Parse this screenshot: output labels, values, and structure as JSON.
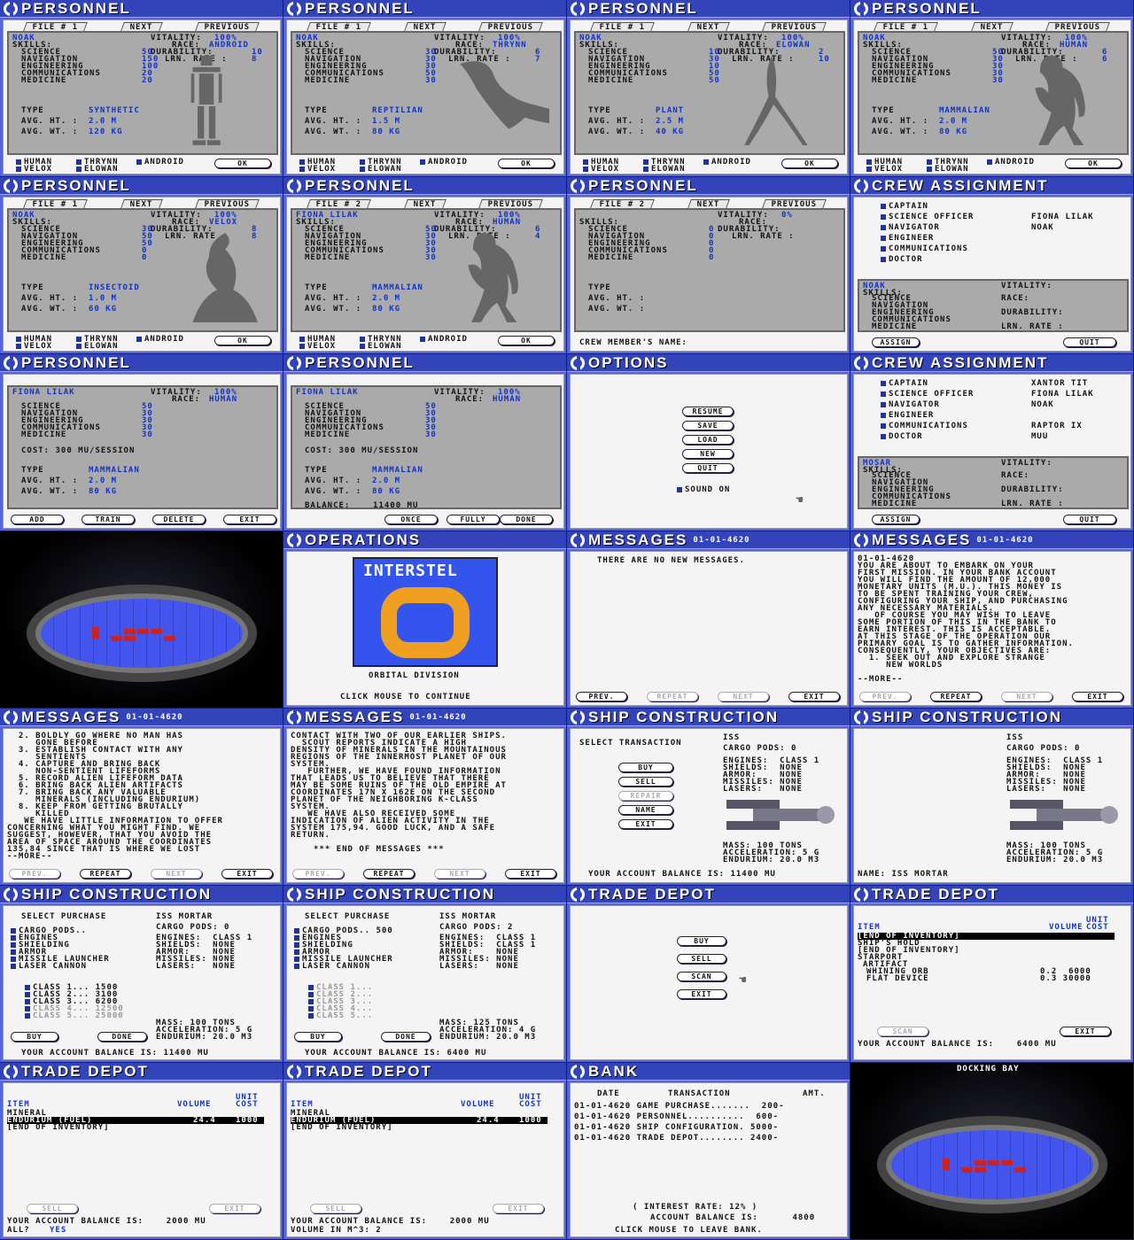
{
  "personnel_panels": [
    {
      "title": "PERSONNEL",
      "file": "1",
      "name": "NOAK",
      "race": "ANDROID",
      "durability": "10",
      "lrn": "8",
      "vitality": "100%",
      "skills": [
        "50",
        "150",
        "100",
        "20",
        "20"
      ],
      "type": "SYNTHETIC",
      "ht": "2.0 M",
      "wt": "120 KG"
    },
    {
      "title": "PERSONNEL",
      "file": "1",
      "name": "NOAK",
      "race": "THRYNN",
      "durability": "6",
      "lrn": "7",
      "vitality": "100%",
      "skills": [
        "30",
        "30",
        "30",
        "50",
        "30"
      ],
      "type": "REPTILIAN",
      "ht": "1.5 M",
      "wt": "80 KG"
    },
    {
      "title": "PERSONNEL",
      "file": "1",
      "name": "NOAK",
      "race": "ELOWAN",
      "durability": "2",
      "lrn": "10",
      "vitality": "100%",
      "skills": [
        "10",
        "30",
        "10",
        "50",
        "50"
      ],
      "type": "PLANT",
      "ht": "2.5 M",
      "wt": "40 KG"
    },
    {
      "title": "PERSONNEL",
      "file": "1",
      "name": "NOAK",
      "race": "HUMAN",
      "durability": "6",
      "lrn": "6",
      "vitality": "100%",
      "skills": [
        "50",
        "30",
        "30",
        "30",
        "30"
      ],
      "type": "MAMMALIAN",
      "ht": "2.0 M",
      "wt": "80 KG"
    },
    {
      "title": "PERSONNEL",
      "file": "1",
      "name": "NOAK",
      "race": "VELOX",
      "durability": "8",
      "lrn": "8",
      "vitality": "100%",
      "skills": [
        "30",
        "50",
        "50",
        "0",
        "0"
      ],
      "type": "INSECTOID",
      "ht": "1.0 M",
      "wt": "60 KG"
    },
    {
      "title": "PERSONNEL",
      "file": "2",
      "name": "FIONA LILAK",
      "race": "HUMAN",
      "durability": "6",
      "lrn": "4",
      "vitality": "100%",
      "skills": [
        "50",
        "30",
        "30",
        "30",
        "30"
      ],
      "type": "MAMMALIAN",
      "ht": "2.0 M",
      "wt": "80 KG"
    },
    {
      "title": "PERSONNEL",
      "file": "2",
      "name": "",
      "race": "",
      "durability": "",
      "lrn": "",
      "vitality": "0%",
      "skills": [
        "0",
        "0",
        "0",
        "0",
        "0"
      ],
      "type": "",
      "ht": "M",
      "wt": "KG"
    }
  ],
  "labels": {
    "file": "FILE #",
    "next": "NEXT",
    "previous": "PREVIOUS",
    "vitality": "VITALITY:",
    "skills": "SKILLS:",
    "race": "RACE:",
    "durability": "DURABILITY:",
    "lrn": "LRN. RATE :",
    "science": "SCIENCE",
    "navigation": "NAVIGATION",
    "engineering": "ENGINEERING",
    "communications": "COMMUNICATIONS",
    "medicine": "MEDICINE",
    "type": "TYPE",
    "ht": "AVG. HT. :",
    "wt": "AVG. WT. :",
    "ok": "OK",
    "races": [
      "HUMAN",
      "THRYNN",
      "ANDROID",
      "VELOX",
      "ELOWAN"
    ],
    "crew_name": "CREW MEMBER'S NAME:"
  },
  "crew_assignment": {
    "title": "CREW ASSIGNMENT",
    "positions": [
      "CAPTAIN",
      "SCIENCE OFFICER",
      "NAVIGATOR",
      "ENGINEER",
      "COMMUNICATIONS",
      "DOCTOR"
    ],
    "assigned_1": [
      "",
      "FIONA LILAK",
      "NOAK",
      "",
      "",
      ""
    ],
    "assigned_2": [
      "XANTOR TIT",
      "FIONA LILAK",
      "NOAK",
      "",
      "RAPTOR IX",
      "MUU"
    ],
    "card1_name": "NOAK",
    "card2_name": "MOSAR",
    "card2_file": "6",
    "assign": "ASSIGN",
    "quit": "QUIT"
  },
  "train": {
    "cost": "COST: 300 MU/SESSION",
    "add": "ADD",
    "train": "TRAIN",
    "delete": "DELETE",
    "exit": "EXIT",
    "balance": "BALANCE:    11400 MU",
    "once": "ONCE",
    "fully": "FULLY",
    "done": "DONE"
  },
  "options": {
    "title": "OPTIONS",
    "buttons": [
      "RESUME",
      "SAVE",
      "LOAD",
      "NEW",
      "QUIT"
    ],
    "sound": "SOUND ON"
  },
  "operations": {
    "title": "OPERATIONS",
    "logo": "INTERSTEL",
    "division": "ORBITAL DIVISION",
    "click": "CLICK MOUSE TO CONTINUE"
  },
  "messages": {
    "title": "MESSAGES",
    "date": "01-01-4620",
    "none": "THERE ARE NO NEW MESSAGES.",
    "prev": "PREV.",
    "repeat": "REPEAT",
    "next": "NEXT",
    "exit": "EXIT",
    "more": "--MORE--",
    "m1": "01-01-4620\nYOU ARE ABOUT TO EMBARK ON YOUR\nFIRST MISSION. IN YOUR BANK ACCOUNT\nYOU WILL FIND THE AMOUNT OF 12,000\nMONETARY UNITS (M.U.). THIS MONEY IS\nTO BE SPENT TRAINING YOUR CREW,\nCONFIGURING YOUR SHIP, AND PURCHASING\nANY NECESSARY MATERIALS.\n   OF COURSE YOU MAY WISH TO LEAVE\nSOME PORTION OF THIS IN THE BANK TO\nEARN INTEREST. THIS IS ACCEPTABLE.\nAT THIS STAGE OF THE OPERATION OUR\nPRIMARY GOAL IS TO GATHER INFORMATION.\nCONSEQUENTLY, YOUR OBJECTIVES ARE:\n  1. SEEK OUT AND EXPLORE STRANGE\n     NEW WORLDS",
    "m2": "  2. BOLDLY GO WHERE NO MAN HAS\n     GONE BEFORE\n  3. ESTABLISH CONTACT WITH ANY\n     SENTIENTS\n  4. CAPTURE AND BRING BACK\n     NON-SENTIENT LIFEFORMS\n  5. RECORD ALIEN LIFEFORM DATA\n  6. BRING BACK ALIEN ARTIFACTS\n  7. BRING BACK ANY VALUABLE\n     MINERALS (INCLUDING ENDURIUM)\n  8. KEEP FROM GETTING BRUTALLY\n     KILLED\n   WE HAVE LITTLE INFORMATION TO OFFER\nCONCERNING WHAT YOU MIGHT FIND. WE\nSUGGEST, HOWEVER, THAT YOU AVOID THE\nAREA OF SPACE AROUND THE COORDINATES\n135,84 SINCE THAT IS WHERE WE LOST",
    "m3": "CONTACT WITH TWO OF OUR EARLIER SHIPS.\n  SCOUT REPORTS INDICATE A HIGH\nDENSITY OF MINERALS IN THE MOUNTAINOUS\nREGIONS OF THE INNERMOST PLANET OF OUR\nSYSTEM.\n   FURTHER, WE HAVE FOUND INFORMATION\nTHAT LEADS US TO BELIEVE THAT THERE\nMAY BE SOME RUINS OF THE OLD EMPIRE AT\nCOORDINATES 17N X 162E ON THE SECOND\nPLANET OF THE NEIGHBORING K-CLASS\nSYSTEM.\n   WE HAVE ALSO RECEIVED SOME\nINDICATION OF ALIEN ACTIVITY IN THE\nSYSTEM 175,94. GOOD LUCK, AND A SAFE\nRETURN.",
    "end": "*** END OF MESSAGES ***"
  },
  "ship": {
    "title": "SHIP CONSTRUCTION",
    "select_tx": "SELECT TRANSACTION",
    "tx": [
      "BUY",
      "SELL",
      "REPAIR",
      "NAME",
      "EXIT"
    ],
    "iss": "ISS",
    "iss_mortar": "ISS MORTAR",
    "pods0": "CARGO PODS: 0",
    "pods2": "CARGO PODS: 2",
    "stats": "ENGINES:  CLASS 1\nSHIELDS:  NONE\nARMOR:    NONE\nMISSILES: NONE\nLASERS:   NONE",
    "stats2": "ENGINES:  CLASS 1\nSHIELDS:  CLASS 1\nARMOR:    NONE\nMISSILES: NONE\nLASERS:   NONE",
    "mass": "MASS: 100 TONS\nACCELERATION: 5 G\nENDURIUM: 20.0 M3",
    "mass2": "MASS: 125 TONS\nACCELERATION: 4 G\nENDURIUM: 20.0 M3",
    "balance1": "YOUR ACCOUNT BALANCE IS: 11400 MU",
    "balance2": "YOUR ACCOUNT BALANCE IS: 6400 MU",
    "name_field": "NAME: ISS MORTAR",
    "select_purchase": "SELECT PURCHASE",
    "items": [
      "CARGO PODS..",
      "ENGINES",
      "SHIELDING",
      "ARMOR",
      "MISSILE LAUNCHER",
      "LASER CANNON"
    ],
    "items2_first": "CARGO PODS.. 500",
    "classes": [
      "CLASS 1... 1500",
      "CLASS 2... 3100",
      "CLASS 3... 6200",
      "CLASS 4... 12500",
      "CLASS 5... 25000"
    ],
    "classes2": [
      "CLASS 1...",
      "CLASS 2...",
      "CLASS 3...",
      "CLASS 4...",
      "CLASS 5..."
    ],
    "buy": "BUY",
    "done": "DONE"
  },
  "trade": {
    "title": "TRADE DEPOT",
    "menu": [
      "BUY",
      "SELL",
      "SCAN",
      "EXIT"
    ],
    "item": "ITEM",
    "volume": "VOLUME",
    "unit_cost": "UNIT COST",
    "inv1": [
      "[END OF INVENTORY]",
      "SHIP'S HOLD",
      "[END OF INVENTORY]",
      "STARPORT",
      "ARTIFACT",
      "WHINING ORB",
      "FLAT DEVICE"
    ],
    "orb": "0.2  6000",
    "flat": "0.3 30000",
    "scan": "SCAN",
    "exit": "EXIT",
    "sell": "SELL",
    "bal64": "YOUR ACCOUNT BALANCE IS:    6400 MU",
    "bal20": "YOUR ACCOUNT BALANCE IS:    2000 MU",
    "mineral": "MINERAL",
    "endurium": "ENDURIUM (FUEL)",
    "end_vol": "24.4",
    "end_cost": "1000",
    "end_inv": "[END OF INVENTORY]",
    "all": "ALL?",
    "yes": "YES",
    "volume_q": "VOLUME IN M^3: 2"
  },
  "bank": {
    "title": "BANK",
    "date": "DATE",
    "transaction": "TRANSACTION",
    "amt": "AMT.",
    "rows": [
      "01-01-4620 GAME PURCHASE.......  200-",
      "01-01-4620 PERSONNEL..........  600-",
      "01-01-4620 SHIP CONFIGURATION. 5000-",
      "01-01-4620 TRADE DEPOT........ 2400-"
    ],
    "interest": "( INTEREST RATE: 12% )",
    "balance": "ACCOUNT BALANCE IS:      4800",
    "click": "CLICK MOUSE TO LEAVE BANK."
  },
  "dock": {
    "title": "DOCKING BAY"
  }
}
